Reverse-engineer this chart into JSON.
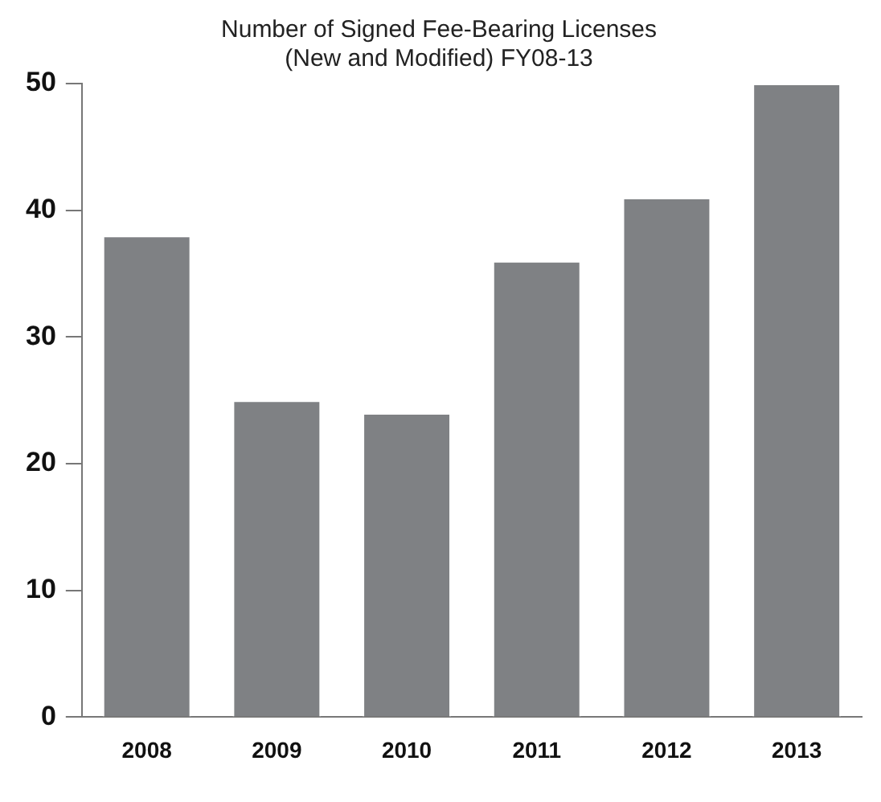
{
  "chart_data": {
    "type": "bar",
    "title": "Number of Signed Fee-Bearing Licenses\n(New and Modified) FY08-13",
    "categories": [
      "2008",
      "2009",
      "2010",
      "2011",
      "2012",
      "2013"
    ],
    "values": [
      38,
      25,
      24,
      36,
      41,
      50
    ],
    "color": "#7f8184",
    "ylim": [
      0,
      50
    ],
    "yticks": [
      0,
      10,
      20,
      30,
      40,
      50
    ],
    "grid": false,
    "legend": false
  }
}
